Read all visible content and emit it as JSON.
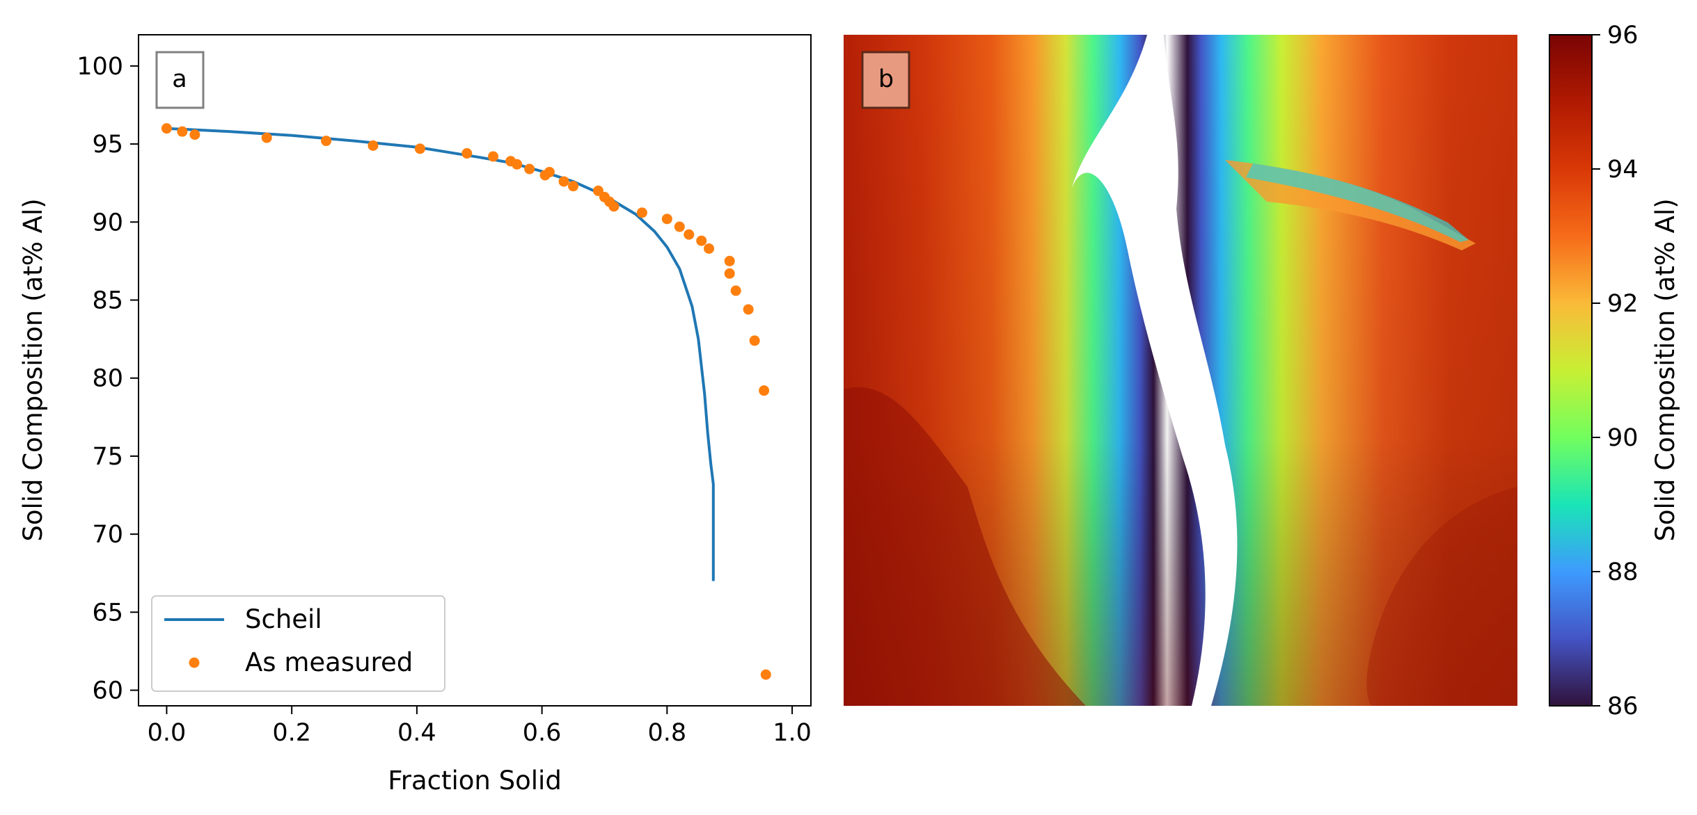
{
  "panel_a": {
    "panel_label": "a",
    "chart_data": {
      "type": "line",
      "xlabel": "Fraction Solid",
      "ylabel": "Solid Composition (at% Al)",
      "xlim": [
        -0.045,
        1.03
      ],
      "ylim": [
        59,
        102
      ],
      "xticks": [
        0.0,
        0.2,
        0.4,
        0.6,
        0.8,
        1.0
      ],
      "xtick_labels": [
        "0.0",
        "0.2",
        "0.4",
        "0.6",
        "0.8",
        "1.0"
      ],
      "yticks": [
        60,
        65,
        70,
        75,
        80,
        85,
        90,
        95,
        100
      ],
      "ytick_labels": [
        "60",
        "65",
        "70",
        "75",
        "80",
        "85",
        "90",
        "95",
        "100"
      ],
      "grid": false,
      "legend_position": "lower-left",
      "series": [
        {
          "name": "Scheil",
          "kind": "line",
          "color": "#1f77b4",
          "x": [
            0.0,
            0.1,
            0.2,
            0.3,
            0.4,
            0.5,
            0.55,
            0.6,
            0.65,
            0.7,
            0.75,
            0.78,
            0.8,
            0.82,
            0.84,
            0.85,
            0.86,
            0.865,
            0.87,
            0.874,
            0.874
          ],
          "y": [
            96.0,
            95.8,
            95.55,
            95.2,
            94.8,
            94.15,
            93.8,
            93.25,
            92.6,
            91.7,
            90.5,
            89.4,
            88.4,
            87.0,
            84.6,
            82.5,
            79.0,
            76.5,
            74.5,
            73.2,
            67.0
          ]
        },
        {
          "name": "As measured",
          "kind": "scatter",
          "color": "#ff7f0e",
          "x": [
            0.0,
            0.025,
            0.045,
            0.16,
            0.255,
            0.33,
            0.405,
            0.48,
            0.522,
            0.55,
            0.56,
            0.58,
            0.605,
            0.612,
            0.635,
            0.65,
            0.69,
            0.7,
            0.708,
            0.715,
            0.76,
            0.8,
            0.82,
            0.835,
            0.855,
            0.867,
            0.9,
            0.9,
            0.91,
            0.93,
            0.94,
            0.955,
            0.958
          ],
          "y": [
            96.0,
            95.8,
            95.6,
            95.4,
            95.2,
            94.9,
            94.7,
            94.4,
            94.2,
            93.9,
            93.7,
            93.4,
            93.0,
            93.2,
            92.6,
            92.3,
            92.0,
            91.6,
            91.3,
            91.0,
            90.6,
            90.2,
            89.7,
            89.2,
            88.8,
            88.3,
            87.5,
            86.7,
            85.6,
            84.4,
            82.4,
            79.2,
            61.0
          ]
        }
      ]
    }
  },
  "panel_b": {
    "panel_label": "b",
    "chart_data": {
      "type": "heatmap",
      "colormap": "turbo",
      "colorbar_label": "Solid Composition (at% Al)",
      "clim": [
        86,
        96
      ],
      "colorbar_ticks": [
        86,
        88,
        90,
        92,
        94,
        96
      ],
      "colorbar_tick_labels": [
        "86",
        "88",
        "90",
        "92",
        "94",
        "96"
      ],
      "axes_visible": false,
      "structure": "dendritic microsegregation map: white/dark core channel running top-to-bottom near center, surrounded by bands of blue, green, yellow and orange grading into dark red at left and right edges"
    }
  },
  "colors": {
    "scheil_line": "#1f77b4",
    "measured_points": "#ff7f0e",
    "panel_b_label_box": "#e89a80"
  }
}
